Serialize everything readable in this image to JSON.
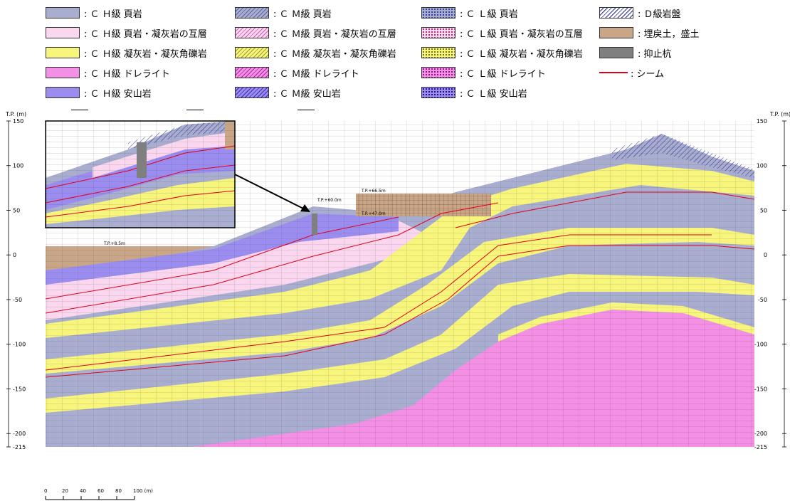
{
  "legend": {
    "items": [
      {
        "label": ": Ｃ Ｈ級 頁岩",
        "fill": "#a9aed1",
        "pattern": "none"
      },
      {
        "label": ": Ｃ Ｈ級 頁岩・凝灰岩の互層",
        "fill": "#fbd6ef",
        "pattern": "none"
      },
      {
        "label": ": Ｃ Ｈ級 凝灰岩・凝灰角礫岩",
        "fill": "#f8f57c",
        "pattern": "none"
      },
      {
        "label": ": Ｃ Ｈ級 ドレライト",
        "fill": "#f48fe6",
        "pattern": "none"
      },
      {
        "label": ": Ｃ Ｈ級 安山岩",
        "fill": "#9b8df0",
        "pattern": "none"
      },
      {
        "label": ": Ｃ Ｍ級 頁岩",
        "fill": "#a9aed1",
        "pattern": "hatch"
      },
      {
        "label": ": Ｃ Ｍ級 頁岩・凝灰岩の互層",
        "fill": "#fbd6ef",
        "pattern": "hatch"
      },
      {
        "label": ": Ｃ Ｍ級 凝灰岩・凝灰角礫岩",
        "fill": "#f8f57c",
        "pattern": "hatch"
      },
      {
        "label": ": Ｃ Ｍ級 ドレライト",
        "fill": "#f48fe6",
        "pattern": "hatch"
      },
      {
        "label": ": Ｃ Ｍ級 安山岩",
        "fill": "#9b8df0",
        "pattern": "hatch"
      },
      {
        "label": ": Ｃ Ｌ級 頁岩",
        "fill": "#a9aed1",
        "pattern": "dots"
      },
      {
        "label": ": Ｃ Ｌ級 頁岩・凝灰岩の互層",
        "fill": "#fbd6ef",
        "pattern": "dots"
      },
      {
        "label": ": Ｃ Ｌ級 凝灰岩・凝灰角礫岩",
        "fill": "#f8f57c",
        "pattern": "dots"
      },
      {
        "label": ": Ｃ Ｌ級 ドレライト",
        "fill": "#f48fe6",
        "pattern": "dots"
      },
      {
        "label": ": Ｃ Ｌ級 安山岩",
        "fill": "#9b8df0",
        "pattern": "dots"
      },
      {
        "label": ": Ｄ級岩盤",
        "fill": "#ffffff",
        "pattern": "dhatch"
      },
      {
        "label": ": 埋戻土，盛土",
        "fill": "#c9a688",
        "pattern": "none"
      },
      {
        "label": ": 抑止杭",
        "fill": "#7f7f7f",
        "pattern": "none"
      },
      {
        "label": ": シーム",
        "fill": "#e0001b",
        "pattern": "line"
      }
    ]
  },
  "axis": {
    "unit_label": "T.P. (m)",
    "ticks": [
      "150",
      "100",
      "50",
      "0",
      "-50",
      "-100",
      "-150",
      "-200",
      "-215"
    ]
  },
  "annotations": {
    "tp_left": "T.P.+8.5m",
    "tp_mid": "T.P.+60.0m",
    "tp_top": "T.P.+66.5m",
    "tp_lower": "T.P.+47.0m"
  },
  "scale_bar": {
    "labels": [
      "0",
      "20",
      "40",
      "60",
      "80",
      "100 (m)"
    ]
  },
  "colors": {
    "shale": "#a9aed1",
    "tuff": "#f8f57c",
    "dolerite": "#f48fe6",
    "andesite": "#9b8df0",
    "alternation": "#fbd6ef",
    "fill_soil": "#c9a688",
    "seam": "#e0001b",
    "pile": "#7f7f7f"
  }
}
